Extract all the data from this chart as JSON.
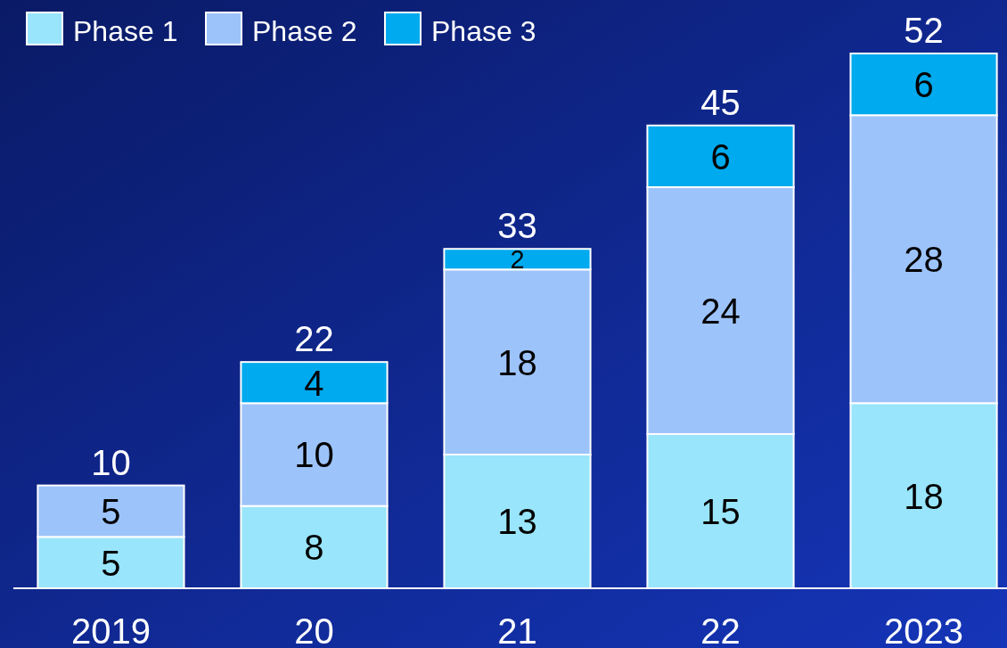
{
  "chart_data": {
    "type": "bar",
    "stacked": true,
    "categories": [
      "2019",
      "20",
      "21",
      "22",
      "2023"
    ],
    "series": [
      {
        "name": "Phase 1",
        "color": "#99e5fb",
        "values": [
          5,
          8,
          13,
          15,
          18
        ]
      },
      {
        "name": "Phase 2",
        "color": "#9dc3fb",
        "values": [
          5,
          10,
          18,
          24,
          28
        ]
      },
      {
        "name": "Phase 3",
        "color": "#00aaee",
        "values": [
          null,
          4,
          2,
          6,
          6
        ]
      }
    ],
    "data_labels": true,
    "totals": [
      "10",
      "22",
      "33",
      "45",
      "52"
    ],
    "legend": "top left"
  }
}
